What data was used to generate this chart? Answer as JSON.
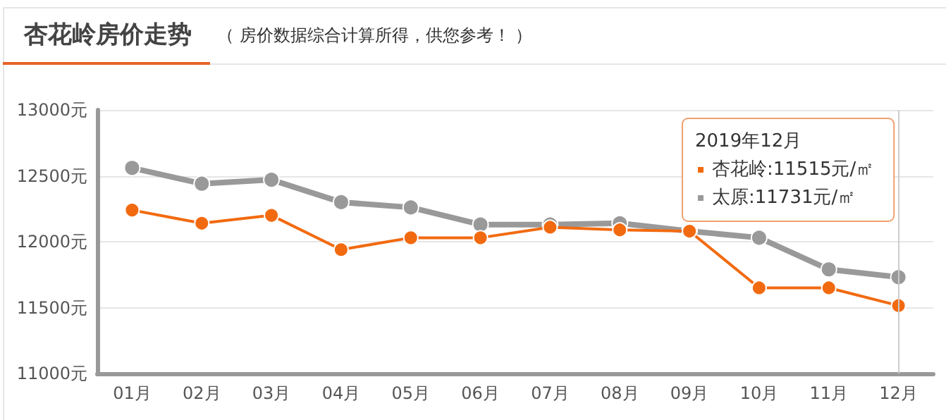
{
  "chart_data": {
    "type": "line",
    "title": "杏花岭房价走势",
    "subtitle": "（ 房价数据综合计算所得，供您参考！ ）",
    "categories": [
      "01月",
      "02月",
      "03月",
      "04月",
      "05月",
      "06月",
      "07月",
      "08月",
      "09月",
      "10月",
      "11月",
      "12月"
    ],
    "series": [
      {
        "name": "杏花岭:11515元/㎡",
        "color": "#f26a10",
        "values": [
          12240,
          12140,
          12200,
          11940,
          12030,
          12030,
          12110,
          12090,
          12080,
          11650,
          11650,
          11515
        ]
      },
      {
        "name": "太原:11731元/㎡",
        "color": "#999999",
        "values": [
          12560,
          12440,
          12470,
          12300,
          12260,
          12130,
          12130,
          12140,
          12080,
          12030,
          11790,
          11731
        ]
      }
    ],
    "ylim": [
      11000,
      13000
    ],
    "yticks": [
      {
        "value": 11000,
        "label": "11000元"
      },
      {
        "value": 11500,
        "label": "11500元"
      },
      {
        "value": 12000,
        "label": "12000元"
      },
      {
        "value": 12500,
        "label": "12500元"
      },
      {
        "value": 13000,
        "label": "13000元"
      }
    ],
    "grid": "y",
    "legend": "top right",
    "legend_title": "2019年12月",
    "marker": "circle",
    "ref_lines": [
      {
        "axis": "x",
        "value": "12月",
        "color": "#cccccc"
      }
    ]
  }
}
